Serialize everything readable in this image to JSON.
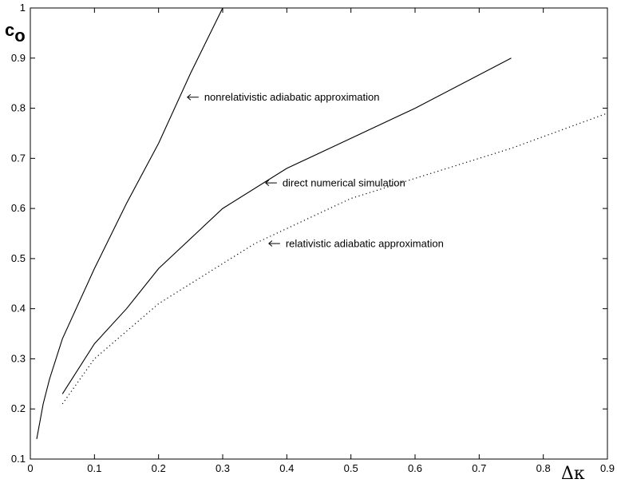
{
  "chart_data": {
    "type": "line",
    "xlabel": "Δκ",
    "ylabel_main": "c",
    "ylabel_sub": "o",
    "xlim": [
      0,
      0.9
    ],
    "ylim": [
      0.1,
      1
    ],
    "xticks": [
      "0",
      "0.1",
      "0.2",
      "0.3",
      "0.4",
      "0.5",
      "0.6",
      "0.7",
      "0.8",
      "0.9"
    ],
    "yticks": [
      "0.1",
      "0.2",
      "0.3",
      "0.4",
      "0.5",
      "0.6",
      "0.7",
      "0.8",
      "0.9",
      "1"
    ],
    "grid": false,
    "series": [
      {
        "style": "solid",
        "x": [
          0.01,
          0.02,
          0.03,
          0.05,
          0.1,
          0.15,
          0.2,
          0.25,
          0.3
        ],
        "y": [
          0.14,
          0.21,
          0.26,
          0.34,
          0.48,
          0.61,
          0.73,
          0.87,
          1.0
        ]
      },
      {
        "style": "solid",
        "x": [
          0.05,
          0.1,
          0.15,
          0.2,
          0.3,
          0.4,
          0.5,
          0.6,
          0.75
        ],
        "y": [
          0.23,
          0.33,
          0.4,
          0.48,
          0.6,
          0.68,
          0.74,
          0.8,
          0.9
        ]
      },
      {
        "style": "dotted",
        "x": [
          0.05,
          0.1,
          0.2,
          0.3,
          0.35,
          0.45,
          0.5,
          0.6,
          0.75,
          0.9
        ],
        "y": [
          0.21,
          0.3,
          0.41,
          0.49,
          0.53,
          0.59,
          0.62,
          0.66,
          0.72,
          0.79
        ]
      }
    ],
    "annotations": [
      {
        "text": "nonrelativistic adiabatic approximation",
        "x": 0.245,
        "y": 0.822
      },
      {
        "text": "direct numerical simulation",
        "x": 0.367,
        "y": 0.651
      },
      {
        "text": "relativistic adiabatic approximation",
        "x": 0.372,
        "y": 0.53
      }
    ]
  }
}
